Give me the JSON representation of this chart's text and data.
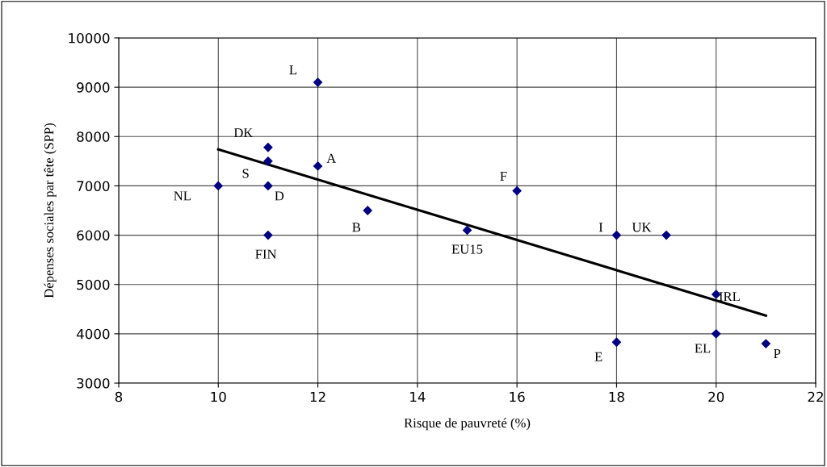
{
  "chart_data": {
    "type": "scatter",
    "xlabel": "Risque de pauvreté (%)",
    "ylabel": "Dépenses sociales par tête (SPP)",
    "xlim": [
      8,
      22
    ],
    "xticks": [
      8,
      10,
      12,
      14,
      16,
      18,
      20,
      22
    ],
    "ylim": [
      3000,
      10000
    ],
    "yticks": [
      3000,
      4000,
      5000,
      6000,
      7000,
      8000,
      9000,
      10000
    ],
    "grid": true,
    "legend": false,
    "marker": "diamond",
    "series": [
      {
        "color": "#000080",
        "x": [
          12,
          11,
          11,
          12,
          10,
          11,
          11,
          13,
          15,
          16,
          18,
          19,
          20,
          18,
          20,
          21
        ],
        "values": [
          9100,
          7780,
          7500,
          7400,
          7000,
          7000,
          6000,
          6500,
          6100,
          6900,
          6000,
          6000,
          4800,
          3830,
          4000,
          3800
        ]
      },
      {
        "type": "line",
        "color": "#000000",
        "x": [
          10,
          21
        ],
        "values": [
          7740,
          4370
        ],
        "marker": "none"
      }
    ],
    "annotations": [
      {
        "text": "L",
        "x": 12,
        "y": 9100
      },
      {
        "text": "DK",
        "x": 11,
        "y": 7780
      },
      {
        "text": "S",
        "x": 11,
        "y": 7500
      },
      {
        "text": "A",
        "x": 12,
        "y": 7400
      },
      {
        "text": "NL",
        "x": 10,
        "y": 7000
      },
      {
        "text": "D",
        "x": 11,
        "y": 7000
      },
      {
        "text": "FIN",
        "x": 11,
        "y": 6000
      },
      {
        "text": "B",
        "x": 13,
        "y": 6500
      },
      {
        "text": "EU15",
        "x": 15,
        "y": 6100
      },
      {
        "text": "F",
        "x": 16,
        "y": 6900
      },
      {
        "text": "I",
        "x": 18,
        "y": 6000
      },
      {
        "text": "UK",
        "x": 19,
        "y": 6000
      },
      {
        "text": "IRL",
        "x": 20,
        "y": 4800
      },
      {
        "text": "E",
        "x": 18,
        "y": 3830
      },
      {
        "text": "EL",
        "x": 20,
        "y": 4000
      },
      {
        "text": "P",
        "x": 21,
        "y": 3800
      }
    ]
  }
}
